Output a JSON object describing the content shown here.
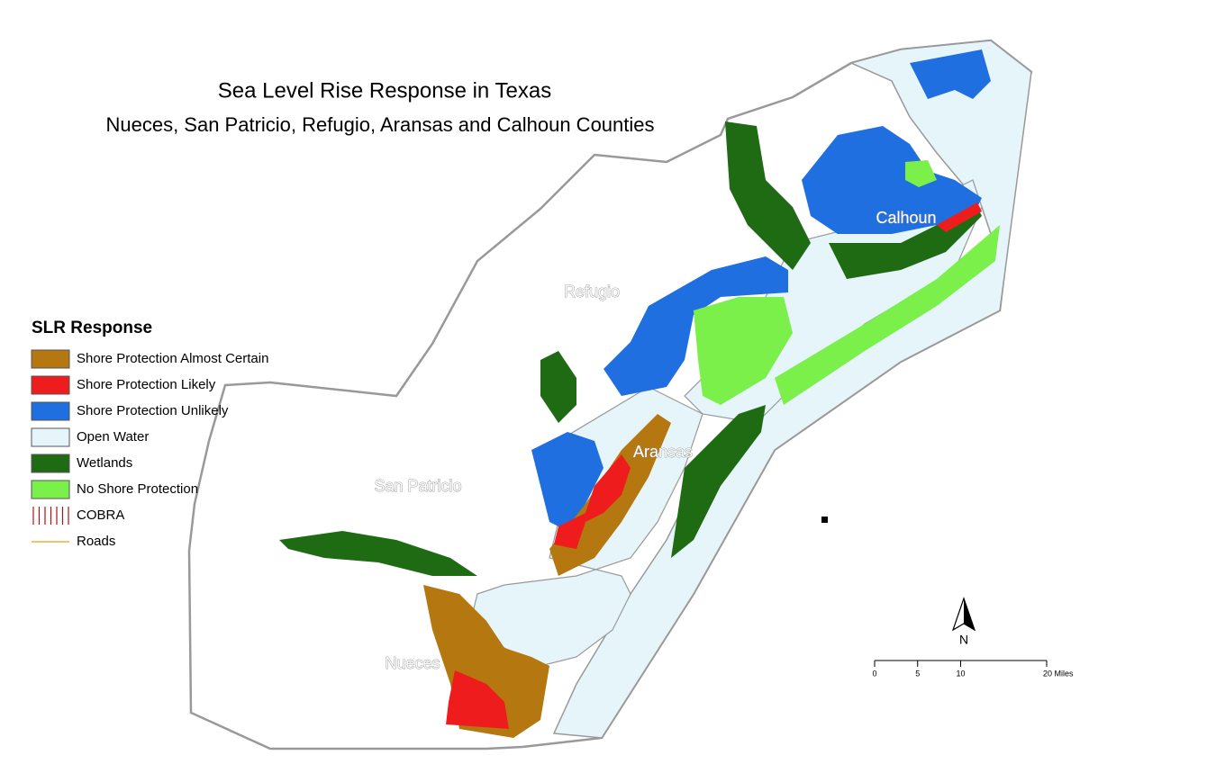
{
  "header": {
    "title": "Sea Level Rise Response in Texas",
    "subtitle": "Nueces, San Patricio, Refugio, Aransas and Calhoun Counties"
  },
  "legend": {
    "title": "SLR Response",
    "items": [
      {
        "label": "Shore Protection Almost Certain",
        "color": "#b5770f",
        "style": "fill"
      },
      {
        "label": "Shore Protection Likely",
        "color": "#ee1c1c",
        "style": "fill"
      },
      {
        "label": "Shore Protection Unlikely",
        "color": "#1f6fe0",
        "style": "fill"
      },
      {
        "label": "Open Water",
        "color": "#e6f5fa",
        "style": "fill"
      },
      {
        "label": "Wetlands",
        "color": "#1f6b14",
        "style": "fill"
      },
      {
        "label": "No Shore Protection",
        "color": "#7cf04a",
        "style": "fill"
      },
      {
        "label": "COBRA",
        "color": "#b01010",
        "style": "hatch"
      },
      {
        "label": "Roads",
        "color": "#e8b040",
        "style": "line"
      }
    ]
  },
  "counties": [
    "Refugio",
    "Aransas",
    "San Patricio",
    "Calhoun",
    "Nueces"
  ],
  "north_arrow": "N",
  "scale_bar": {
    "ticks": [
      0,
      5,
      10,
      {
        "value": 20,
        "label": "20 Miles"
      }
    ]
  }
}
